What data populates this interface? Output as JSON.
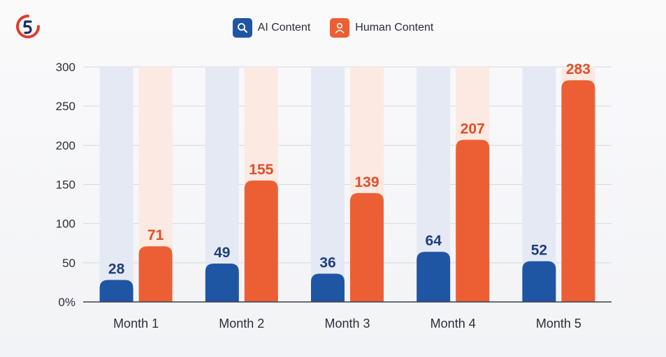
{
  "legend": {
    "items": [
      {
        "label": "AI Content",
        "icon": "search-icon",
        "color": "#1f56a3"
      },
      {
        "label": "Human Content",
        "icon": "person-icon",
        "color": "#ec5f35"
      }
    ]
  },
  "colors": {
    "ai": "#1f56a3",
    "ai_label": "#1d3f7a",
    "ai_track": "#e5e9f4",
    "human": "#ec5f35",
    "human_label": "#df4f27",
    "human_track": "#fce9e2",
    "gridline": "#d6d8dd",
    "axis": "#3a3f4a",
    "logo_red": "#e23a2c",
    "logo_navy": "#1b2f5e"
  },
  "chart_data": {
    "type": "bar",
    "categories": [
      "Month 1",
      "Month 2",
      "Month 3",
      "Month 4",
      "Month 5"
    ],
    "series": [
      {
        "name": "AI Content",
        "values": [
          28,
          49,
          36,
          64,
          52
        ]
      },
      {
        "name": "Human Content",
        "values": [
          71,
          155,
          139,
          207,
          283
        ]
      }
    ],
    "yticks": [
      "0%",
      "50",
      "100",
      "150",
      "200",
      "250",
      "300"
    ],
    "ylim": [
      0,
      300
    ],
    "grid": true,
    "legend_position": "top-center",
    "title": "",
    "xlabel": "",
    "ylabel": ""
  }
}
